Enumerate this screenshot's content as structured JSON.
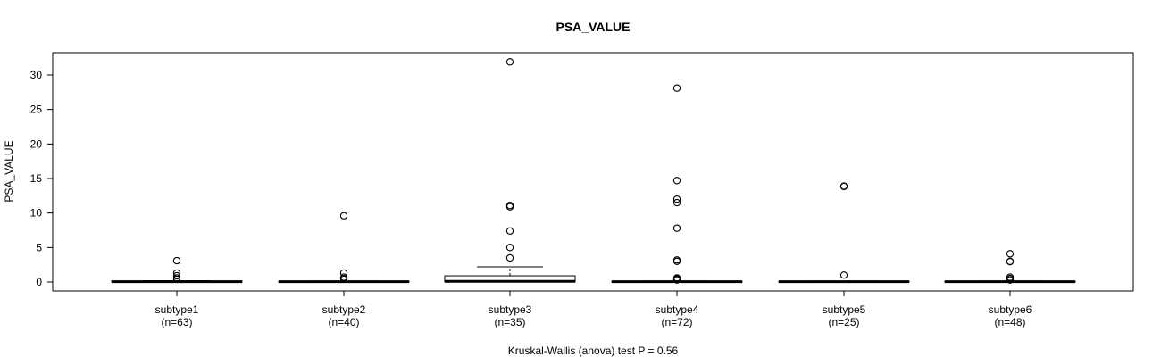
{
  "chart_data": {
    "type": "box",
    "title": "PSA_VALUE",
    "ylabel": "PSA_VALUE",
    "xlabel": "",
    "ylim": [
      -1.3,
      33
    ],
    "yticks": [
      0,
      5,
      10,
      15,
      20,
      25,
      30
    ],
    "yticks_text": [
      "0",
      "5",
      "10",
      "15",
      "20",
      "25",
      "30"
    ],
    "categories": [
      "subtype1",
      "subtype2",
      "subtype3",
      "subtype4",
      "subtype5",
      "subtype6"
    ],
    "counts": [
      "(n=63)",
      "(n=40)",
      "(n=35)",
      "(n=72)",
      "(n=25)",
      "(n=48)"
    ],
    "boxes": [
      {
        "q1": 0.0,
        "median": 0.05,
        "q3": 0.15,
        "whisker_low": 0.0,
        "whisker_high": 0.2,
        "outliers": [
          3.1,
          1.3,
          0.9,
          0.6,
          0.4
        ]
      },
      {
        "q1": 0.0,
        "median": 0.05,
        "q3": 0.1,
        "whisker_low": 0.0,
        "whisker_high": 0.15,
        "outliers": [
          9.6,
          1.3,
          0.7,
          0.5,
          0.4
        ]
      },
      {
        "q1": 0.0,
        "median": 0.1,
        "q3": 0.9,
        "whisker_low": 0.0,
        "whisker_high": 2.2,
        "outliers": [
          31.9,
          11.1,
          10.9,
          7.4,
          5.0,
          3.5
        ]
      },
      {
        "q1": 0.0,
        "median": 0.05,
        "q3": 0.1,
        "whisker_low": 0.0,
        "whisker_high": 0.15,
        "outliers": [
          28.1,
          14.7,
          12.0,
          11.5,
          7.8,
          3.2,
          3.0,
          0.6,
          0.5,
          0.4,
          0.3
        ]
      },
      {
        "q1": 0.0,
        "median": 0.05,
        "q3": 0.1,
        "whisker_low": 0.0,
        "whisker_high": 0.15,
        "outliers": [
          13.9,
          13.85,
          1.0
        ]
      },
      {
        "q1": 0.0,
        "median": 0.05,
        "q3": 0.1,
        "whisker_low": 0.0,
        "whisker_high": 0.15,
        "outliers": [
          4.1,
          3.0,
          2.95,
          0.7,
          0.5,
          0.3
        ]
      }
    ],
    "note": "Kruskal-Wallis (anova) test P = 0.56",
    "grid": false,
    "colors": {
      "box_fill": "#ffffff",
      "stroke": "#000000"
    }
  }
}
